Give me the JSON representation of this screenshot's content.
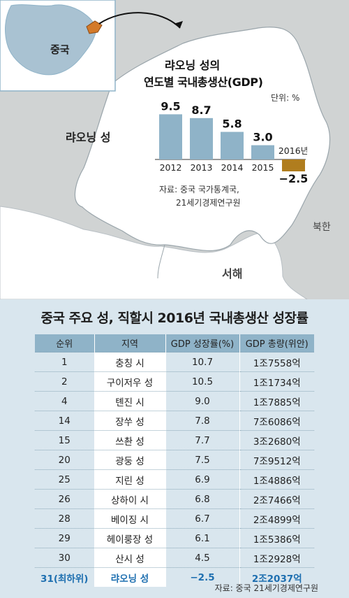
{
  "map": {
    "china_label": "중국",
    "province_label": "랴오닝 성",
    "nk_label": "북한",
    "sea_label": "서해"
  },
  "chart": {
    "title_line1": "랴오닝 성의",
    "title_line2": "연도별 국내총생산(GDP)",
    "unit": "단위: %",
    "source_line1": "자료: 중국 국가통계국,",
    "source_line2": "21세기경제연구원",
    "bar_color": "#8fb3c8",
    "neg_color": "#b07d1e"
  },
  "chart_data": {
    "type": "bar",
    "title": "랴오닝 성의 연도별 국내총생산(GDP)",
    "unit": "%",
    "categories": [
      "2012",
      "2013",
      "2014",
      "2015",
      "2016년"
    ],
    "values": [
      9.5,
      8.7,
      5.8,
      3.0,
      -2.5
    ],
    "value_labels": [
      "9.5",
      "8.7",
      "5.8",
      "3.0",
      "−2.5"
    ]
  },
  "table": {
    "title": "중국 주요 성, 직할시 2016년 국내총생산 성장률",
    "headers": [
      "순위",
      "지역",
      "GDP 성장률(%)",
      "GDP 총량(위안)"
    ],
    "rows": [
      [
        "1",
        "충칭 시",
        "10.7",
        "1조7558억"
      ],
      [
        "2",
        "구이저우 성",
        "10.5",
        "1조1734억"
      ],
      [
        "4",
        "톈진 시",
        "9.0",
        "1조7885억"
      ],
      [
        "14",
        "장쑤 성",
        "7.8",
        "7조6086억"
      ],
      [
        "15",
        "쓰촨 성",
        "7.7",
        "3조2680억"
      ],
      [
        "20",
        "광둥 성",
        "7.5",
        "7조9512억"
      ],
      [
        "25",
        "지린 성",
        "6.9",
        "1조4886억"
      ],
      [
        "26",
        "상하이 시",
        "6.8",
        "2조7466억"
      ],
      [
        "28",
        "베이징 시",
        "6.7",
        "2조4899억"
      ],
      [
        "29",
        "헤이룽장 성",
        "6.1",
        "1조5386억"
      ],
      [
        "30",
        "산시 성",
        "4.5",
        "1조2928억"
      ],
      [
        "31(최하위)",
        "랴오닝 성",
        "−2.5",
        "2조2037억"
      ]
    ],
    "source": "자료: 중국 21세기경제연구원",
    "header_color": "#8fb3c8",
    "highlight_color": "#1e6fb0"
  }
}
